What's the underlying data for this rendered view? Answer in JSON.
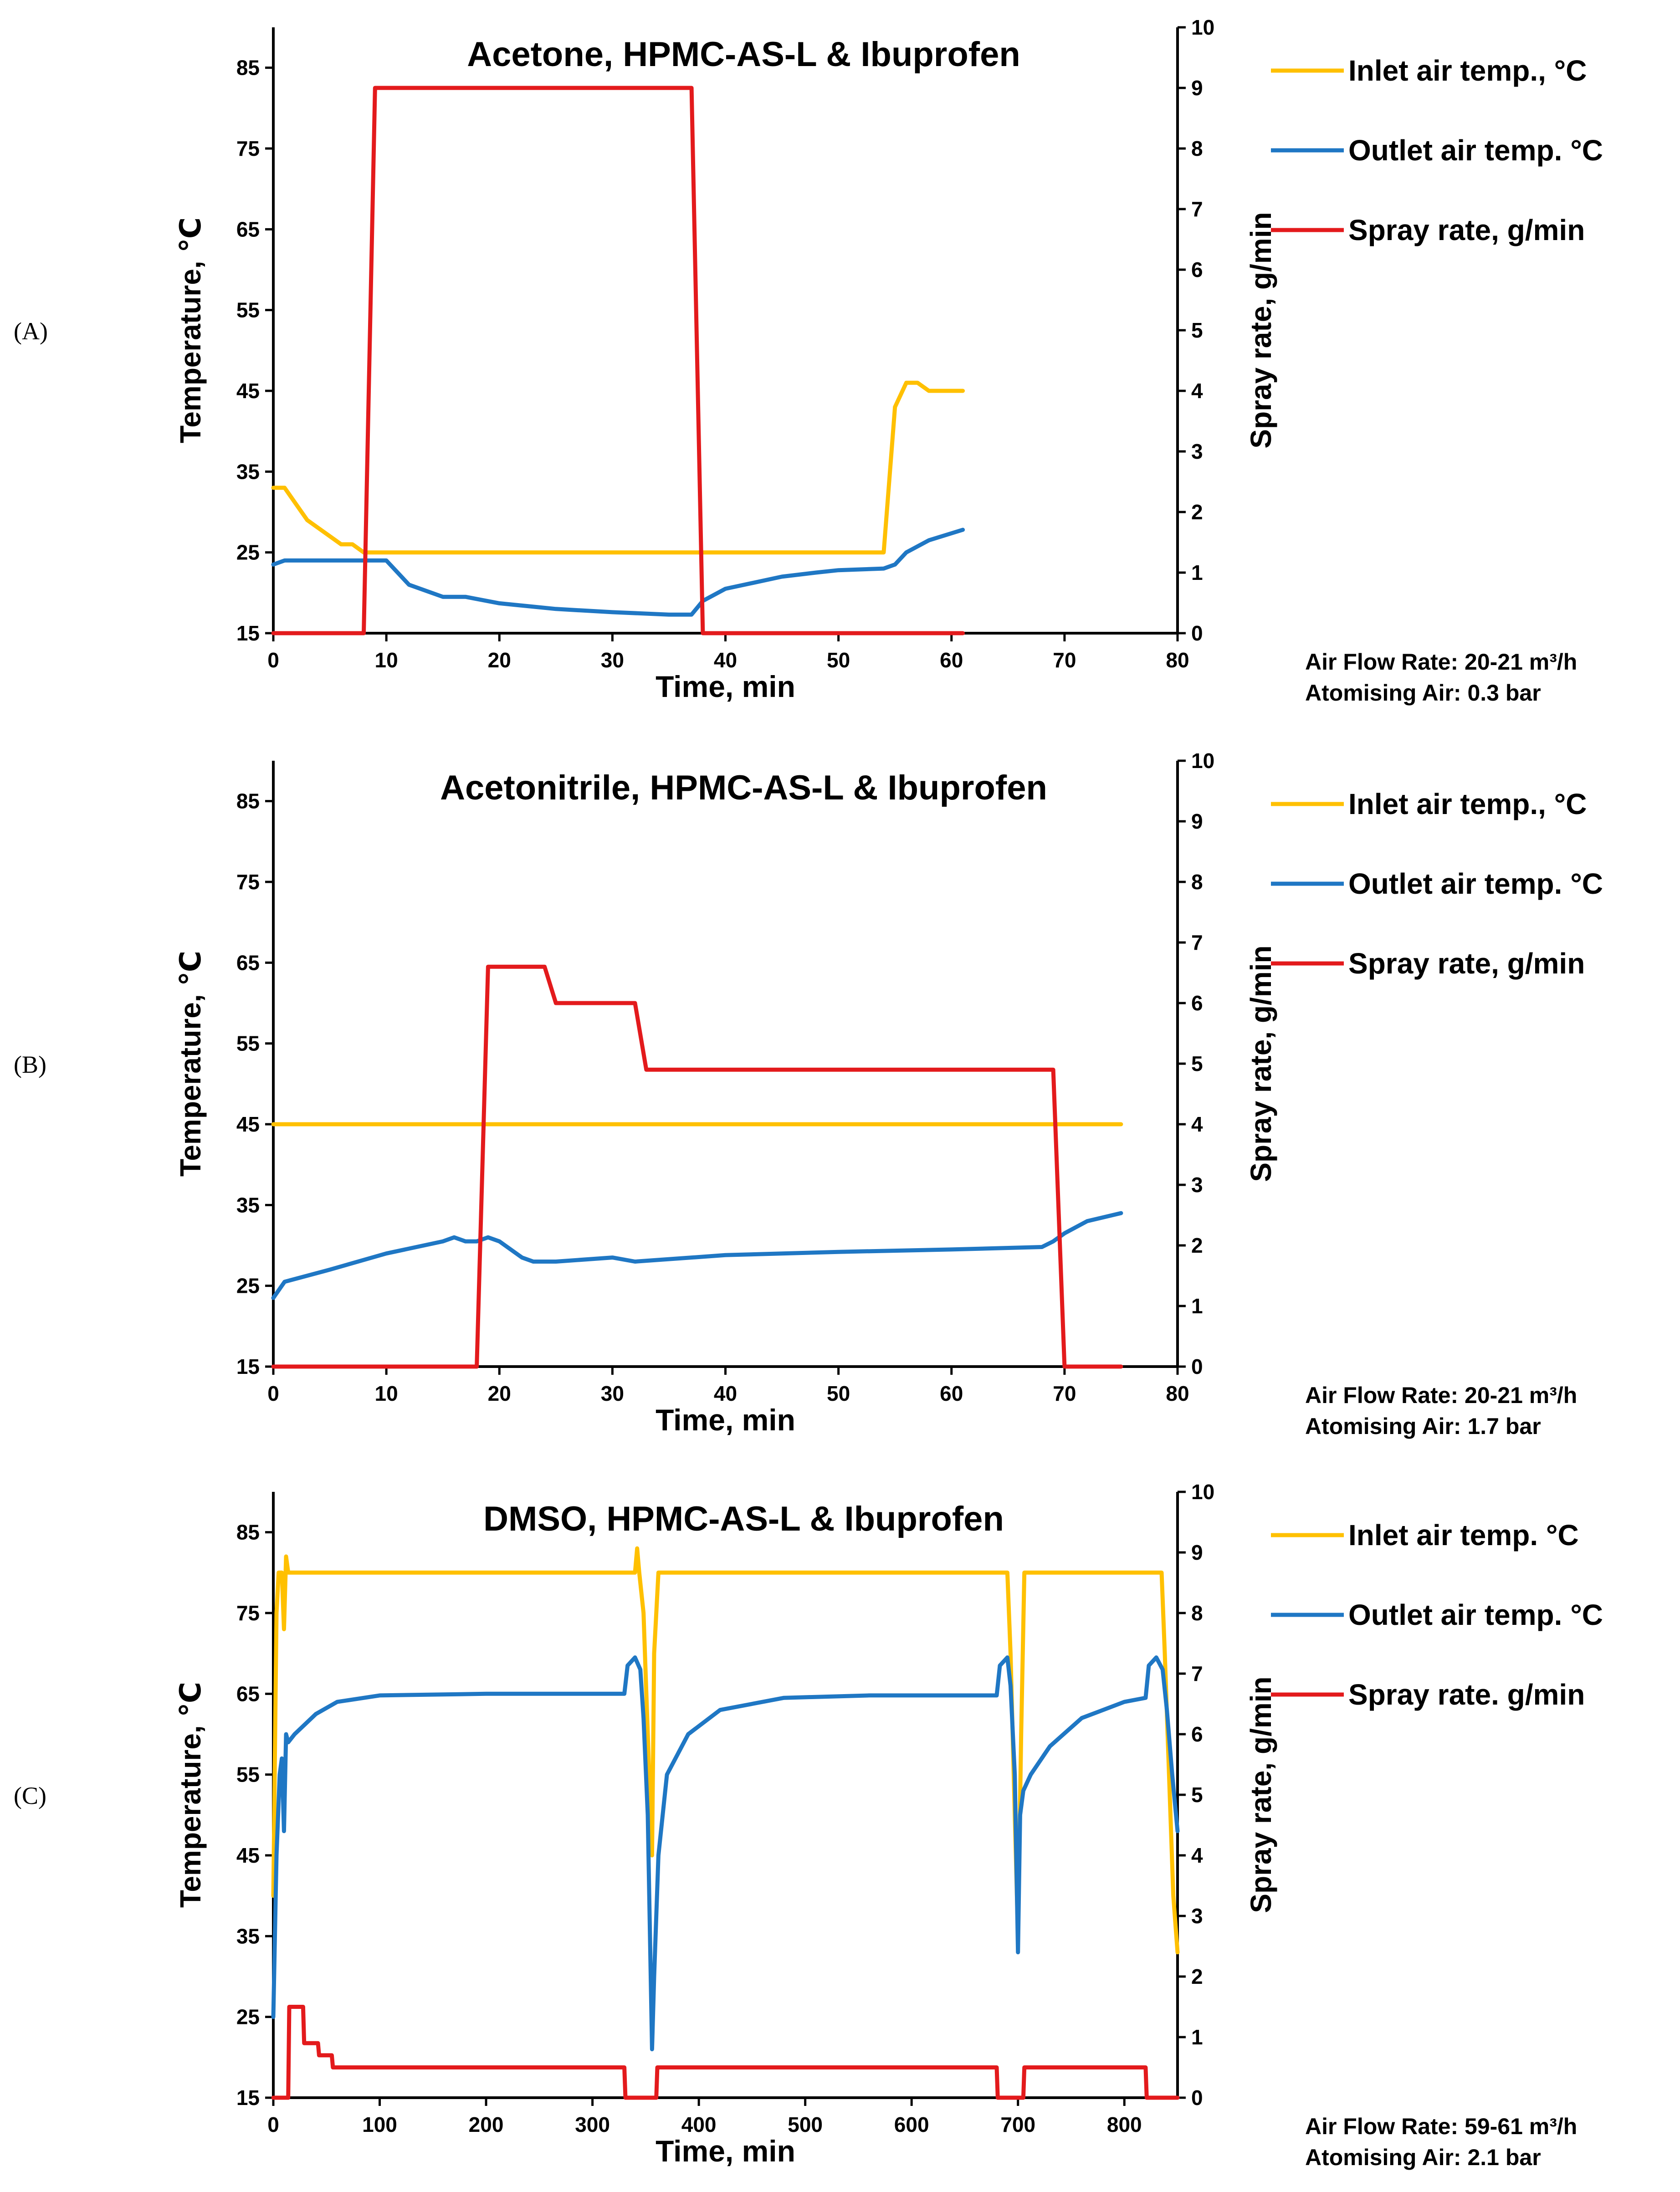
{
  "figure": {
    "panel_labels": [
      "(A)",
      "(B)",
      "(C)"
    ],
    "colors": {
      "inlet": "#FFC000",
      "outlet": "#1F77C4",
      "spray": "#E31A1C",
      "axis": "#000000"
    }
  },
  "chart_data": [
    {
      "type": "line",
      "panel": "(A)",
      "title": "Acetone, HPMC-AS-L & Ibuprofen",
      "xlabel": "Time, min",
      "ylabel_left": "Temperature, ℃",
      "ylabel_right": "Spray rate, g/min",
      "xlim": [
        0,
        80
      ],
      "ylim_left": [
        15,
        90
      ],
      "ylim_right": [
        0,
        10
      ],
      "x_ticks": [
        0,
        10,
        20,
        30,
        40,
        50,
        60,
        70,
        80
      ],
      "y_ticks_left": [
        15,
        25,
        35,
        45,
        55,
        65,
        75,
        85
      ],
      "y_ticks_right": [
        0,
        1,
        2,
        3,
        4,
        5,
        6,
        7,
        8,
        9,
        10
      ],
      "legend": [
        "Inlet air temp.,  °C",
        "Outlet air temp.  °C",
        "Spray rate, g/min"
      ],
      "notes": [
        "Air Flow Rate: 20-21 m³/h",
        "Atomising  Air: 0.3 bar"
      ],
      "series": [
        {
          "name": "Inlet air temp.,  °C",
          "axis": "left",
          "color": "#FFC000",
          "x": [
            0,
            1,
            2,
            3,
            4,
            5,
            6,
            7,
            8,
            9,
            54,
            55,
            56,
            57,
            58,
            61
          ],
          "y": [
            33,
            33,
            31,
            29,
            28,
            27,
            26,
            26,
            25,
            25,
            25,
            43,
            46,
            46,
            45,
            45
          ]
        },
        {
          "name": "Outlet air temp.  °C",
          "axis": "left",
          "color": "#1F77C4",
          "x": [
            0,
            1,
            5,
            10,
            12,
            15,
            17,
            20,
            25,
            30,
            35,
            37,
            38,
            40,
            45,
            48,
            50,
            54,
            55,
            56,
            58,
            61
          ],
          "y": [
            23.5,
            24,
            24,
            24,
            21,
            19.5,
            19.5,
            18.7,
            18,
            17.6,
            17.3,
            17.3,
            19,
            20.5,
            22,
            22.5,
            22.8,
            23,
            23.5,
            25,
            26.5,
            27.8
          ]
        },
        {
          "name": "Spray rate, g/min",
          "axis": "right",
          "color": "#E31A1C",
          "x": [
            0,
            8,
            9,
            37,
            38,
            61
          ],
          "y": [
            0,
            0,
            9,
            9,
            0,
            0
          ]
        }
      ]
    },
    {
      "type": "line",
      "panel": "(B)",
      "title": "Acetonitrile, HPMC-AS-L & Ibuprofen",
      "xlabel": "Time, min",
      "ylabel_left": "Temperature, ℃",
      "ylabel_right": "Spray rate, g/min",
      "xlim": [
        0,
        80
      ],
      "ylim_left": [
        15,
        90
      ],
      "ylim_right": [
        0,
        10
      ],
      "x_ticks": [
        0,
        10,
        20,
        30,
        40,
        50,
        60,
        70,
        80
      ],
      "y_ticks_left": [
        15,
        25,
        35,
        45,
        55,
        65,
        75,
        85
      ],
      "y_ticks_right": [
        0,
        1,
        2,
        3,
        4,
        5,
        6,
        7,
        8,
        9,
        10
      ],
      "legend": [
        "Inlet air temp.,  °C",
        "Outlet air temp. °C",
        "Spray rate, g/min"
      ],
      "notes": [
        "Air Flow Rate: 20-21 m³/h",
        "Atomising  Air: 1.7 bar"
      ],
      "series": [
        {
          "name": "Inlet air temp.,  °C",
          "axis": "left",
          "color": "#FFC000",
          "x": [
            0,
            75
          ],
          "y": [
            45,
            45
          ]
        },
        {
          "name": "Outlet air temp. °C",
          "axis": "left",
          "color": "#1F77C4",
          "x": [
            0,
            1,
            5,
            10,
            15,
            16,
            17,
            18,
            19,
            20,
            21,
            22,
            23,
            25,
            30,
            32,
            40,
            50,
            60,
            68,
            69,
            70,
            72,
            75
          ],
          "y": [
            23.5,
            25.5,
            27,
            29,
            30.5,
            31,
            30.5,
            30.5,
            31,
            30.5,
            29.5,
            28.5,
            28,
            28,
            28.5,
            28,
            28.8,
            29.2,
            29.5,
            29.8,
            30.5,
            31.5,
            33,
            34
          ]
        },
        {
          "name": "Spray rate, g/min",
          "axis": "right",
          "color": "#E31A1C",
          "x": [
            0,
            18,
            19,
            24,
            25,
            32,
            33,
            69,
            70,
            75
          ],
          "y": [
            0,
            0,
            6.6,
            6.6,
            6.0,
            6.0,
            4.9,
            4.9,
            0,
            0
          ]
        }
      ]
    },
    {
      "type": "line",
      "panel": "(C)",
      "title": "DMSO, HPMC-AS-L & Ibuprofen",
      "xlabel": "Time, min",
      "ylabel_left": "Temperature, ℃",
      "ylabel_right": "Spray rate, g/min",
      "xlim": [
        0,
        850
      ],
      "ylim_left": [
        15,
        90
      ],
      "ylim_right": [
        0,
        10
      ],
      "x_ticks": [
        0,
        100,
        200,
        300,
        400,
        500,
        600,
        700,
        800
      ],
      "y_ticks_left": [
        15,
        25,
        35,
        45,
        55,
        65,
        75,
        85
      ],
      "y_ticks_right": [
        0,
        1,
        2,
        3,
        4,
        5,
        6,
        7,
        8,
        9,
        10
      ],
      "legend": [
        "Inlet air temp.   °C",
        "Outlet air temp.  °C",
        "Spray rate. g/min"
      ],
      "notes": [
        "Air Flow Rate: 59-61 m³/h",
        "Atomising  Air: 2.1 bar"
      ],
      "series": [
        {
          "name": "Inlet air temp.   °C",
          "axis": "left",
          "color": "#FFC000",
          "x": [
            0,
            3,
            5,
            8,
            10,
            12,
            14,
            16,
            340,
            342,
            344,
            348,
            352,
            356,
            358,
            362,
            690,
            693,
            697,
            700,
            703,
            706,
            835,
            838,
            842,
            846,
            850
          ],
          "y": [
            40,
            75,
            80,
            80,
            73,
            82,
            80,
            80,
            80,
            83,
            80,
            75,
            60,
            45,
            70,
            80,
            80,
            70,
            50,
            35,
            60,
            80,
            80,
            70,
            55,
            40,
            33
          ]
        },
        {
          "name": "Outlet air temp.  °C",
          "axis": "left",
          "color": "#1F77C4",
          "x": [
            0,
            3,
            6,
            8,
            10,
            12,
            14,
            20,
            40,
            60,
            100,
            200,
            330,
            333,
            340,
            345,
            348,
            352,
            356,
            358,
            362,
            370,
            390,
            420,
            480,
            560,
            680,
            683,
            690,
            693,
            697,
            700,
            702,
            705,
            712,
            730,
            760,
            800,
            820,
            823,
            830,
            836,
            840,
            845,
            850
          ],
          "y": [
            25,
            45,
            55,
            57,
            48,
            60,
            59,
            60,
            62.5,
            64,
            64.8,
            65,
            65,
            68.5,
            69.5,
            68,
            62,
            50,
            21,
            30,
            45,
            55,
            60,
            63,
            64.5,
            64.8,
            64.8,
            68.5,
            69.5,
            66,
            55,
            33,
            50,
            53,
            55,
            58.5,
            62,
            64,
            64.5,
            68.5,
            69.5,
            68,
            63,
            55,
            48
          ]
        },
        {
          "name": "Spray rate. g/min",
          "axis": "right",
          "color": "#E31A1C",
          "x": [
            0,
            14,
            15,
            28,
            29,
            42,
            43,
            55,
            56,
            330,
            331,
            360,
            361,
            680,
            681,
            705,
            706,
            820,
            821,
            850
          ],
          "y": [
            0,
            0,
            1.5,
            1.5,
            0.9,
            0.9,
            0.7,
            0.7,
            0.5,
            0.5,
            0,
            0,
            0.5,
            0.5,
            0,
            0,
            0.5,
            0.5,
            0,
            0
          ]
        }
      ]
    }
  ]
}
